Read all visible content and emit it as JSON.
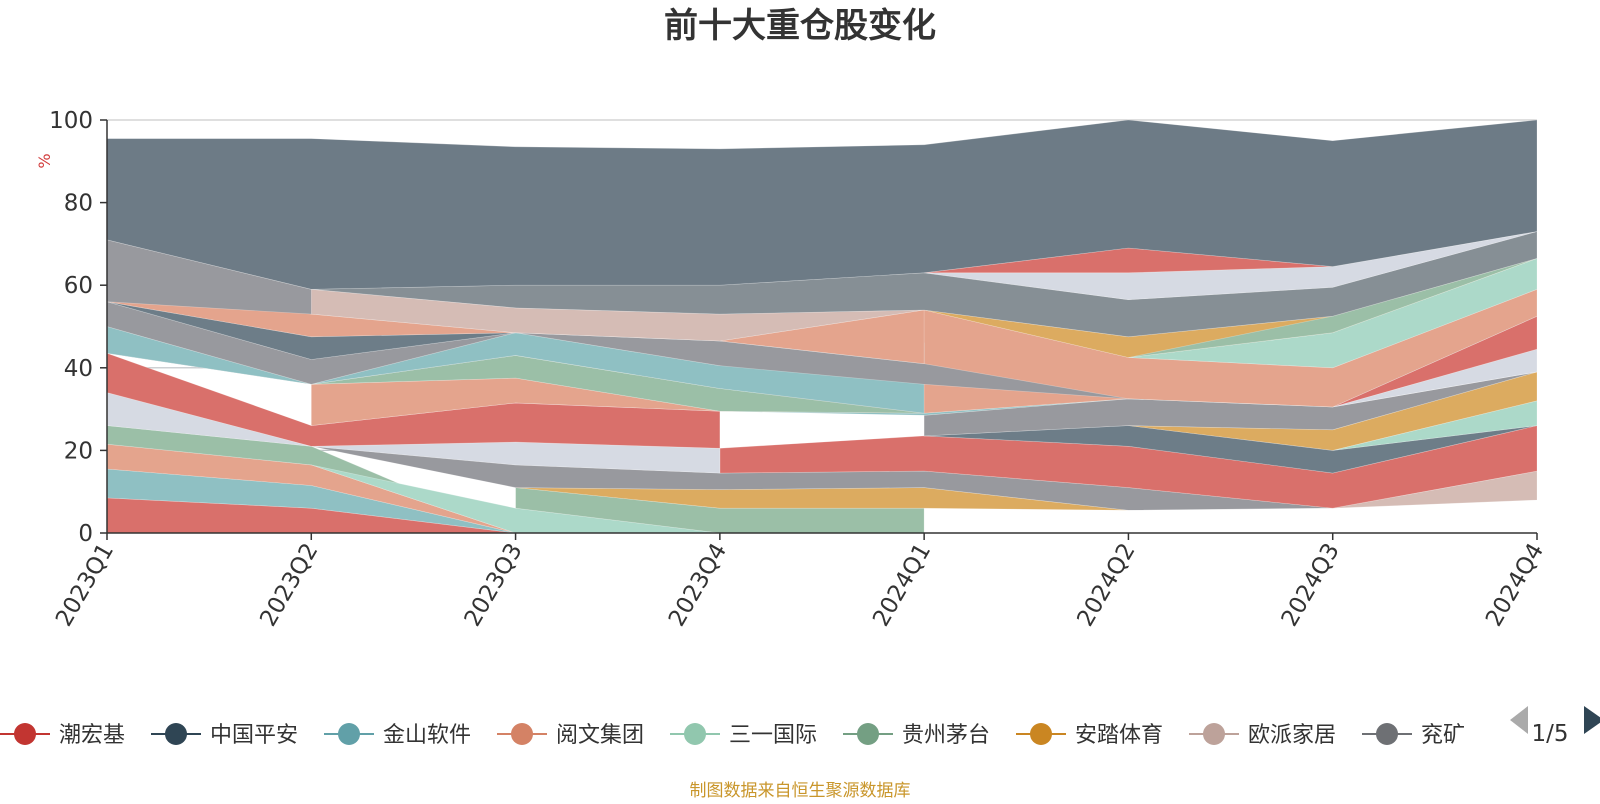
{
  "chart_data": {
    "type": "area",
    "title": "前十大重仓股变化",
    "ylabel": "%",
    "ylim": [
      0,
      100
    ],
    "yticks": [
      0,
      20,
      40,
      60,
      80,
      100
    ],
    "grid": true,
    "categories": [
      "2023Q1",
      "2023Q2",
      "2023Q3",
      "2023Q4",
      "2024Q1",
      "2024Q2",
      "2024Q3",
      "2024Q4"
    ],
    "bands": [
      {
        "color": "#d9706b",
        "lower": [
          0,
          0,
          0,
          null,
          null,
          null,
          null,
          null
        ],
        "upper": [
          8.5,
          6,
          0,
          null,
          null,
          null,
          null,
          null
        ]
      },
      {
        "color": "#8fc0c3",
        "lower": [
          8.5,
          6,
          0,
          null,
          null,
          null,
          null,
          null
        ],
        "upper": [
          15.5,
          11.5,
          0,
          null,
          null,
          null,
          null,
          null
        ]
      },
      {
        "color": "#e4a48d",
        "lower": [
          15.5,
          11.5,
          0,
          null,
          null,
          null,
          null,
          null
        ],
        "upper": [
          21.5,
          16.5,
          0,
          null,
          null,
          null,
          null,
          null
        ]
      },
      {
        "color": "#9bbfa7",
        "lower": [
          21.5,
          16.5,
          0,
          null,
          null,
          null,
          null,
          null
        ],
        "upper": [
          26,
          21,
          0,
          null,
          null,
          null,
          null,
          null
        ]
      },
      {
        "color": "#acd9c9",
        "lower": [
          null,
          16.5,
          0,
          0,
          null,
          null,
          null,
          null
        ],
        "upper": [
          null,
          16.5,
          6,
          0,
          null,
          null,
          null,
          null
        ]
      },
      {
        "color": "#9bbfa7",
        "lower": [
          null,
          null,
          6,
          0,
          0,
          null,
          null,
          null
        ],
        "upper": [
          null,
          null,
          11,
          6,
          6,
          null,
          null,
          null
        ]
      },
      {
        "color": "#dcab60",
        "lower": [
          null,
          null,
          11,
          6,
          6,
          5.5,
          null,
          null
        ],
        "upper": [
          null,
          null,
          11,
          10.5,
          11,
          5.5,
          null,
          null
        ]
      },
      {
        "color": "#98999e",
        "lower": [
          null,
          21,
          11,
          10.5,
          11,
          5.5,
          6,
          null
        ],
        "upper": [
          null,
          21,
          16.5,
          14.5,
          15,
          11,
          6,
          null
        ]
      },
      {
        "color": "#6d7d88",
        "lower": [
          null,
          null,
          null,
          null,
          0,
          5.5,
          6,
          8
        ],
        "upper": [
          null,
          null,
          null,
          null,
          0,
          5.5,
          6,
          8
        ]
      },
      {
        "color": "#d5bcb5",
        "lower": [
          null,
          null,
          null,
          null,
          null,
          null,
          6,
          8
        ],
        "upper": [
          null,
          null,
          null,
          null,
          null,
          null,
          6,
          15
        ]
      },
      {
        "color": "#d9706b",
        "lower": [
          null,
          null,
          null,
          14.5,
          15,
          11,
          6,
          15
        ],
        "upper": [
          null,
          null,
          null,
          20.5,
          23.5,
          21,
          14.5,
          26
        ]
      },
      {
        "color": "#6d7d88",
        "lower": [
          null,
          null,
          null,
          null,
          23.5,
          21,
          14.5,
          26
        ],
        "upper": [
          null,
          null,
          null,
          null,
          23.5,
          26,
          20,
          26
        ]
      },
      {
        "color": "#acd9c9",
        "lower": [
          null,
          null,
          null,
          null,
          null,
          null,
          20,
          26
        ],
        "upper": [
          null,
          null,
          null,
          null,
          null,
          null,
          20,
          32
        ]
      },
      {
        "color": "#dcab60",
        "lower": [
          null,
          null,
          null,
          null,
          null,
          26,
          20,
          32
        ],
        "upper": [
          null,
          null,
          null,
          null,
          null,
          26,
          25,
          39
        ]
      },
      {
        "color": "#98999e",
        "lower": [
          null,
          null,
          null,
          null,
          23.5,
          26,
          25,
          39
        ],
        "upper": [
          null,
          null,
          null,
          null,
          28.5,
          32.5,
          30.5,
          39
        ]
      },
      {
        "color": "#d6dae3",
        "lower": [
          26,
          21,
          16.5,
          14.5,
          null,
          null,
          30.5,
          39
        ],
        "upper": [
          34,
          21,
          22,
          20.5,
          null,
          null,
          30.5,
          44.5
        ]
      },
      {
        "color": "#d9706b",
        "lower": [
          34,
          21,
          22,
          20.5,
          null,
          null,
          30.5,
          44.5
        ],
        "upper": [
          43.5,
          26,
          31.5,
          29.5,
          null,
          null,
          30.5,
          52.5
        ]
      },
      {
        "color": "#8fc0c3",
        "lower": [
          null,
          26,
          31.5,
          29.5,
          28.5,
          32.5,
          30.5,
          52.5
        ],
        "upper": [
          null,
          26,
          31.5,
          29.5,
          29,
          32.5,
          40,
          59
        ]
      },
      {
        "color": "#e4a48d",
        "lower": [
          null,
          26,
          31.5,
          29.5,
          29,
          32.5,
          30.5,
          52.5
        ],
        "upper": [
          null,
          36,
          37.5,
          29.5,
          54,
          42.5,
          40,
          59
        ]
      },
      {
        "color": "#9bbfa7",
        "lower": [
          null,
          36,
          37.5,
          29.5,
          29,
          null,
          null,
          null
        ],
        "upper": [
          null,
          36,
          43,
          35,
          29,
          null,
          null,
          null
        ]
      },
      {
        "color": "#acd9c9",
        "lower": [
          null,
          null,
          null,
          null,
          null,
          42.5,
          40,
          59
        ],
        "upper": [
          null,
          null,
          null,
          null,
          null,
          42.5,
          48.5,
          66.5
        ]
      },
      {
        "color": "#dcab60",
        "lower": [
          null,
          null,
          null,
          null,
          54,
          42.5,
          48.5,
          66.5
        ],
        "upper": [
          null,
          null,
          null,
          null,
          54,
          47.5,
          52.5,
          66.5
        ]
      },
      {
        "color": "#9bbfa7",
        "lower": [
          null,
          null,
          null,
          null,
          null,
          42.5,
          48.5,
          66.5
        ],
        "upper": [
          null,
          null,
          null,
          null,
          null,
          42.5,
          52.5,
          66.5
        ]
      },
      {
        "color": "#98999e",
        "lower": [
          43.5,
          36,
          43,
          35,
          null,
          null,
          null,
          null
        ],
        "upper": [
          50,
          36,
          48.5,
          40.5,
          null,
          null,
          null,
          null
        ]
      },
      {
        "color": "#8fc0c3",
        "lower": [
          43.5,
          36,
          43,
          35,
          29,
          null,
          null,
          null
        ],
        "upper": [
          50,
          36,
          48.5,
          40.5,
          46,
          null,
          null,
          null
        ]
      },
      {
        "color": "#98999e",
        "lower": [
          50,
          36,
          48.5,
          40.5,
          36,
          32.5,
          30.5,
          39
        ],
        "upper": [
          56,
          42,
          48.5,
          46.5,
          41,
          32.5,
          30.5,
          39
        ]
      },
      {
        "color": "#6d7d88",
        "lower": [
          56,
          42,
          48.5,
          46.5,
          41,
          null,
          null,
          null
        ],
        "upper": [
          56,
          47.5,
          48.5,
          46.5,
          41,
          null,
          null,
          null
        ]
      },
      {
        "color": "#e4a48d",
        "lower": [
          56,
          47.5,
          48.5,
          46.5,
          41,
          null,
          null,
          null
        ],
        "upper": [
          63,
          53,
          48.5,
          46.5,
          54,
          null,
          null,
          null
        ]
      },
      {
        "color": "#d5bcb5",
        "lower": [
          63,
          53,
          48.5,
          46.5,
          54,
          null,
          null,
          null
        ],
        "upper": [
          63,
          59,
          54.5,
          53,
          54,
          null,
          null,
          null
        ]
      },
      {
        "color": "#98999e",
        "lower": [
          56,
          53,
          null,
          null,
          null,
          null,
          null,
          null
        ],
        "upper": [
          71,
          59,
          null,
          null,
          null,
          null,
          null,
          null
        ]
      },
      {
        "color": "#868f95",
        "lower": [
          null,
          59,
          54.5,
          53,
          54,
          47.5,
          52.5,
          66.5
        ],
        "upper": [
          null,
          59,
          60,
          60,
          63,
          56.5,
          59.5,
          73
        ]
      },
      {
        "color": "#d6dae3",
        "lower": [
          null,
          null,
          null,
          null,
          63,
          56.5,
          59.5,
          73
        ],
        "upper": [
          null,
          null,
          null,
          null,
          63,
          63,
          64.5,
          73
        ]
      },
      {
        "color": "#d9706b",
        "lower": [
          null,
          null,
          null,
          null,
          63,
          63,
          64.5,
          73
        ],
        "upper": [
          null,
          null,
          null,
          null,
          63,
          69,
          64.5,
          73
        ]
      },
      {
        "color": "#6d7b86",
        "lower": [
          71,
          59,
          60,
          60,
          63,
          69,
          64.5,
          73
        ],
        "upper": [
          95.5,
          95.5,
          93.5,
          93,
          94,
          100,
          95,
          100
        ]
      }
    ],
    "legend": {
      "position": "bottom",
      "page": "1/5",
      "items": [
        {
          "name": "潮宏基",
          "color": "#c23531"
        },
        {
          "name": "中国平安",
          "color": "#2f4554"
        },
        {
          "name": "金山软件",
          "color": "#61a0a8"
        },
        {
          "name": "阅文集团",
          "color": "#d48265"
        },
        {
          "name": "三一国际",
          "color": "#91c7ae"
        },
        {
          "name": "贵州茅台",
          "color": "#749f83"
        },
        {
          "name": "安踏体育",
          "color": "#ca8622"
        },
        {
          "name": "欧派家居",
          "color": "#bda29a"
        },
        {
          "name": "兖矿",
          "color": "#6e7074"
        }
      ]
    },
    "source_note": "制图数据来自恒生聚源数据库"
  }
}
